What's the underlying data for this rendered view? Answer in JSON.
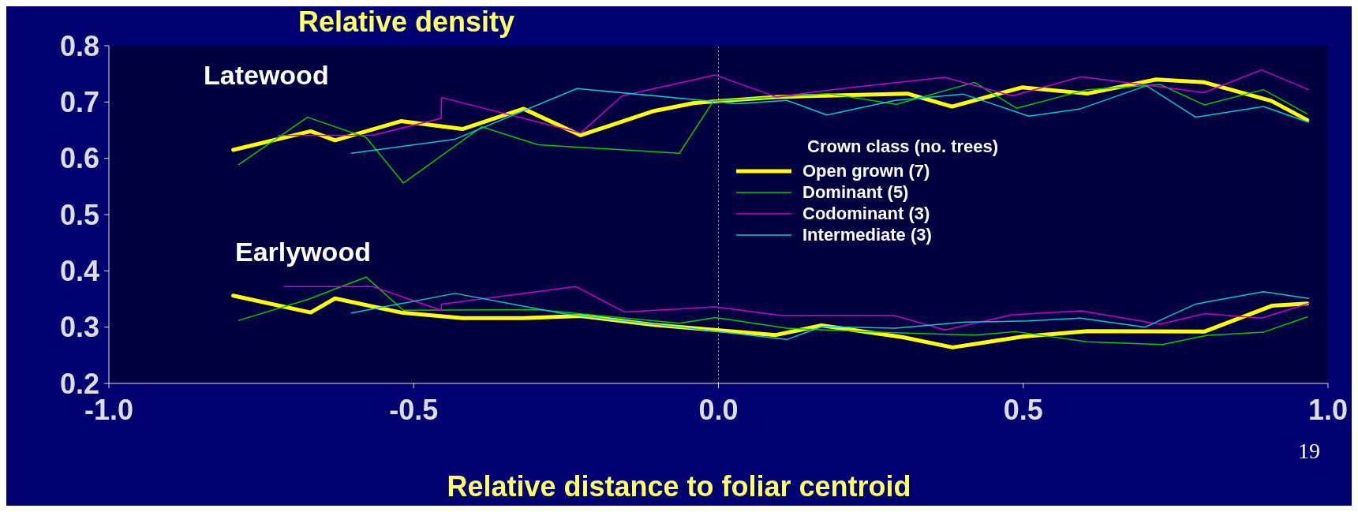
{
  "chart_data": {
    "type": "line",
    "ylabel": "Relative density",
    "xlabel": "Relative distance to foliar centroid",
    "legend_title": "Crown class (no. trees)",
    "legend": "center",
    "marker": "none",
    "line_style": "solid",
    "xlim": [
      -1,
      1
    ],
    "xticks": [
      {
        "value": -1,
        "label": "-1.0"
      },
      {
        "value": -0.5,
        "label": "-0.5"
      },
      {
        "value": 0,
        "label": "0.0"
      },
      {
        "value": 0.5,
        "label": "0.5"
      },
      {
        "value": 1,
        "label": "1.0"
      }
    ],
    "ylim": [
      0.2,
      0.8
    ],
    "yticks": [
      0.2,
      0.3,
      0.4,
      0.5,
      0.6,
      0.7,
      0.8
    ],
    "ref_lines": [
      {
        "axis": "x",
        "value": 0,
        "line_style": "dotted",
        "color": "#aaaaaa"
      }
    ],
    "annotations": [
      "Latewood",
      "Earlywood",
      "19"
    ],
    "series": [
      {
        "name": "Open grown (7)",
        "color": "#ffff00",
        "x": [
          -0.796,
          -0.669,
          -0.629,
          -0.521,
          -0.42,
          -0.32,
          -0.226,
          -0.106,
          -0.041,
          -0.008,
          0.095,
          0.31,
          0.383,
          0.498,
          0.605,
          0.718,
          0.797,
          0.907,
          0.966
        ],
        "values": [
          0.615,
          0.648,
          0.632,
          0.666,
          0.652,
          0.688,
          0.641,
          0.684,
          0.698,
          0.701,
          0.709,
          0.715,
          0.692,
          0.726,
          0.715,
          0.74,
          0.735,
          0.702,
          0.668
        ]
      },
      {
        "name": "Dominant (5)",
        "color": "#00cc00",
        "x": [
          -0.787,
          -0.674,
          -0.578,
          -0.517,
          -0.388,
          -0.296,
          -0.064,
          -0.008,
          0.18,
          0.292,
          0.42,
          0.489,
          0.605,
          0.725,
          0.797,
          0.894,
          0.966
        ],
        "values": [
          0.589,
          0.673,
          0.637,
          0.556,
          0.656,
          0.624,
          0.609,
          0.702,
          0.715,
          0.696,
          0.735,
          0.689,
          0.722,
          0.731,
          0.695,
          0.722,
          0.679
        ]
      },
      {
        "name": "Codominant (3)",
        "color": "#cc00cc",
        "x": [
          -0.722,
          -0.567,
          -0.455,
          -0.454,
          -0.226,
          -0.158,
          -0.005,
          0.095,
          0.202,
          0.371,
          0.482,
          0.595,
          0.797,
          0.891,
          0.968
        ],
        "values": [
          0.641,
          0.641,
          0.671,
          0.708,
          0.645,
          0.711,
          0.748,
          0.709,
          0.724,
          0.744,
          0.711,
          0.745,
          0.717,
          0.757,
          0.722
        ]
      },
      {
        "name": "Intermediate (3)",
        "color": "#00cccc",
        "x": [
          -0.602,
          -0.432,
          -0.232,
          -0.008,
          0.03,
          0.112,
          0.178,
          0.29,
          0.402,
          0.509,
          0.594,
          0.702,
          0.783,
          0.894,
          0.968
        ],
        "values": [
          0.609,
          0.634,
          0.724,
          0.701,
          0.697,
          0.703,
          0.677,
          0.703,
          0.714,
          0.675,
          0.688,
          0.729,
          0.673,
          0.692,
          0.664
        ]
      },
      {
        "color": "#ffff00",
        "x": [
          -0.796,
          -0.669,
          -0.629,
          -0.521,
          -0.42,
          -0.32,
          -0.226,
          -0.106,
          0.094,
          0.169,
          0.303,
          0.384,
          0.498,
          0.605,
          0.797,
          0.908,
          0.966
        ],
        "values": [
          0.356,
          0.326,
          0.351,
          0.326,
          0.316,
          0.316,
          0.32,
          0.304,
          0.286,
          0.303,
          0.282,
          0.264,
          0.283,
          0.293,
          0.292,
          0.338,
          0.342
        ]
      },
      {
        "color": "#00cc00",
        "x": [
          -0.787,
          -0.674,
          -0.578,
          -0.517,
          -0.296,
          -0.064,
          -0.005,
          0.112,
          0.29,
          0.42,
          0.488,
          0.605,
          0.728,
          0.799,
          0.894,
          0.966
        ],
        "values": [
          0.312,
          0.349,
          0.389,
          0.33,
          0.331,
          0.307,
          0.317,
          0.298,
          0.29,
          0.286,
          0.292,
          0.274,
          0.269,
          0.285,
          0.291,
          0.318
        ]
      },
      {
        "color": "#cc00cc",
        "x": [
          -0.712,
          -0.567,
          -0.455,
          -0.454,
          -0.234,
          -0.154,
          -0.005,
          0.102,
          0.287,
          0.372,
          0.482,
          0.595,
          0.724,
          0.798,
          0.891,
          0.968
        ],
        "values": [
          0.372,
          0.372,
          0.33,
          0.341,
          0.372,
          0.327,
          0.336,
          0.321,
          0.321,
          0.295,
          0.322,
          0.329,
          0.305,
          0.324,
          0.316,
          0.342
        ]
      },
      {
        "color": "#00cccc",
        "x": [
          -0.602,
          -0.432,
          -0.255,
          0.112,
          0.17,
          0.29,
          0.404,
          0.509,
          0.594,
          0.7,
          0.783,
          0.894,
          0.968
        ],
        "values": [
          0.325,
          0.36,
          0.324,
          0.278,
          0.301,
          0.298,
          0.309,
          0.311,
          0.316,
          0.3,
          0.341,
          0.363,
          0.351
        ]
      }
    ]
  }
}
